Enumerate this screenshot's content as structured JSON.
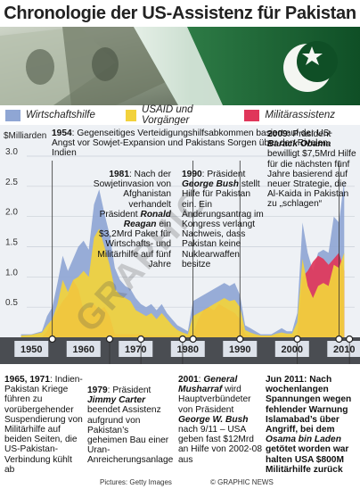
{
  "title": "Chronologie der US-Assistenz für Pakistan",
  "legend": {
    "items": [
      {
        "label": "Wirtschaftshilfe",
        "color": "#8fa6d4"
      },
      {
        "label": "USAID und Vorgänger",
        "color": "#f2d23c"
      },
      {
        "label": "Militärassistenz",
        "color": "#e0365a"
      }
    ]
  },
  "chart_data": {
    "type": "area",
    "ylabel": "$Milliarden",
    "ylim": [
      0,
      3.25
    ],
    "yticks": [
      "3.0",
      "2.5",
      "2.0",
      "1.5",
      "1.0",
      "0.5"
    ],
    "xticks": [
      "1950",
      "1960",
      "1970",
      "1980",
      "1990",
      "2000",
      "2010"
    ],
    "series": [
      {
        "name": "Wirtschaftshilfe",
        "color": "#8fa6d4",
        "x": [
          1948,
          1950,
          1952,
          1953,
          1954,
          1955,
          1956,
          1957,
          1958,
          1959,
          1960,
          1961,
          1962,
          1963,
          1964,
          1965,
          1966,
          1967,
          1968,
          1969,
          1970,
          1971,
          1972,
          1973,
          1974,
          1975,
          1976,
          1977,
          1978,
          1979,
          1980,
          1981,
          1982,
          1983,
          1984,
          1985,
          1986,
          1987,
          1988,
          1989,
          1990,
          1991,
          1992,
          1993,
          1994,
          1995,
          1996,
          1997,
          1998,
          1999,
          2000,
          2001,
          2002,
          2003,
          2004,
          2005,
          2006,
          2007,
          2008,
          2009,
          2010
        ],
        "values": [
          0.05,
          0.05,
          0.1,
          0.35,
          0.5,
          0.9,
          1.35,
          1.1,
          1.3,
          1.5,
          1.6,
          1.45,
          2.2,
          2.45,
          2.05,
          1.7,
          1.15,
          0.95,
          0.85,
          0.8,
          0.65,
          0.55,
          0.5,
          0.55,
          0.45,
          0.55,
          0.4,
          0.3,
          0.2,
          0.15,
          0.1,
          0.6,
          0.65,
          0.7,
          0.75,
          0.8,
          0.85,
          0.9,
          0.85,
          0.9,
          0.7,
          0.2,
          0.15,
          0.1,
          0.05,
          0.05,
          0.05,
          0.1,
          0.15,
          0.1,
          0.1,
          0.4,
          1.9,
          1.4,
          1.1,
          1.4,
          1.45,
          1.4,
          2.0,
          1.9,
          2.6
        ]
      },
      {
        "name": "USAID und Vorgänger",
        "color": "#f2d23c",
        "x": [
          1948,
          1950,
          1952,
          1953,
          1954,
          1955,
          1956,
          1957,
          1958,
          1959,
          1960,
          1961,
          1962,
          1963,
          1964,
          1965,
          1966,
          1967,
          1968,
          1969,
          1970,
          1971,
          1972,
          1973,
          1974,
          1975,
          1976,
          1977,
          1978,
          1979,
          1980,
          1981,
          1982,
          1983,
          1984,
          1985,
          1986,
          1987,
          1988,
          1989,
          1990,
          1991,
          1992,
          1993,
          1994,
          1995,
          1996,
          1997,
          1998,
          1999,
          2000,
          2001,
          2002,
          2003,
          2004,
          2005,
          2006,
          2007,
          2008,
          2009,
          2010
        ],
        "values": [
          0.03,
          0.04,
          0.08,
          0.2,
          0.3,
          0.55,
          0.95,
          0.75,
          0.95,
          1.0,
          1.1,
          1.0,
          1.65,
          1.8,
          1.5,
          1.2,
          0.8,
          0.7,
          0.65,
          0.6,
          0.45,
          0.4,
          0.35,
          0.4,
          0.3,
          0.4,
          0.3,
          0.2,
          0.12,
          0.08,
          0.05,
          0.35,
          0.4,
          0.45,
          0.5,
          0.55,
          0.6,
          0.65,
          0.6,
          0.62,
          0.5,
          0.12,
          0.08,
          0.05,
          0.03,
          0.03,
          0.03,
          0.06,
          0.08,
          0.06,
          0.06,
          0.25,
          1.3,
          0.85,
          0.65,
          0.85,
          0.9,
          0.85,
          1.2,
          1.15,
          1.4
        ]
      },
      {
        "name": "Militärassistenz",
        "color": "#e0365a",
        "x": [
          1948,
          1950,
          1952,
          1953,
          1954,
          1955,
          1956,
          1957,
          1958,
          1959,
          1960,
          1961,
          1962,
          1963,
          1964,
          1965,
          1966,
          1967,
          1968,
          1969,
          1970,
          1971,
          1972,
          1973,
          1974,
          1975,
          1976,
          1977,
          1978,
          1979,
          1980,
          1981,
          1982,
          1983,
          1984,
          1985,
          1986,
          1987,
          1988,
          1989,
          1990,
          1991,
          1992,
          1993,
          1994,
          1995,
          1996,
          1997,
          1998,
          1999,
          2000,
          2001,
          2002,
          2003,
          2004,
          2005,
          2006,
          2007,
          2008,
          2009,
          2010
        ],
        "values": [
          0.0,
          0.0,
          0.0,
          0.1,
          0.3,
          0.45,
          0.6,
          0.7,
          0.95,
          0.8,
          0.45,
          0.5,
          0.55,
          0.45,
          0.5,
          0.35,
          0.05,
          0.05,
          0.05,
          0.05,
          0.05,
          0.05,
          0.02,
          0.02,
          0.02,
          0.02,
          0.02,
          0.02,
          0.02,
          0.02,
          0.02,
          0.05,
          0.3,
          0.45,
          0.5,
          0.45,
          0.55,
          0.5,
          0.45,
          0.4,
          0.3,
          0.05,
          0.02,
          0.02,
          0.02,
          0.02,
          0.02,
          0.02,
          0.02,
          0.02,
          0.02,
          0.05,
          1.0,
          1.1,
          1.25,
          1.35,
          1.3,
          1.2,
          1.3,
          1.4,
          1.1
        ]
      }
    ]
  },
  "annotations": {
    "a1954": {
      "year": "1954",
      "text": ": Gegenseitiges Verteidigungshilfsabkommen basiert auf der US-Angst vor Sowjet-Expansion und Pakistans Sorgen über den Rivalen Indien"
    },
    "a1981": {
      "year": "1981",
      "pre": ": Nach der Sowjetinvasion von Afghanistan verhandelt Präsident",
      "name": "Ronald Reagan",
      "post": "ein $3,2Mrd Paket für Wirtschafts- und Militärhilfe auf fünf Jahre"
    },
    "a1990": {
      "year": "1990",
      "pre": ": Präsident",
      "name": "George Bush",
      "post": "stellt Hilfe für Pakistan ein. Ein Änderungsantrag im Kongress verlangt Nachweis, dass Pakistan keine Nuklearwaffen besitze"
    },
    "a2009": {
      "year": "2009",
      "pre": ": Präsident",
      "name": "Barack Obama",
      "post": "bewilligt $7,5Mrd Hilfe für die nächsten fünf Jahre basierend auf neuer Strategie, die Al-Kaida in Pakistan zu „schlagen“"
    },
    "a1965": {
      "year": "1965, 1971",
      "post": ": Indien-Pakistan Kriege führen zu vorübergehender Suspendierung von Militärhilfe auf beiden Seiten, die US-Pakistan-Verbindung kühlt ab"
    },
    "a1979": {
      "year": "1979",
      "pre": ": Präsident",
      "name": "Jimmy Carter",
      "post": "beendet Assistenz aufgrund von Pakistan’s geheimen Bau einer Uran-Anreicherungsanlage"
    },
    "a2001": {
      "year": "2001",
      "pre": ":",
      "name": "General Musharraf",
      "mid": "wird Hauptverbündeter von Präsident",
      "name2": "George W. Bush",
      "post": "nach 9/11 – USA geben fast $12Mrd an Hilfe von 2002-08 aus"
    },
    "a2011": {
      "text1": "Jun 2011: Nach wochenlangen Spannungen wegen fehlender Warnung Islamabad’s über Angriff, bei dem",
      "name": "Osama bin Laden",
      "text2": "getötet worden war halten USA $800M Militärhilfe zurück"
    }
  },
  "credits": {
    "pictures": "Pictures: Getty Images",
    "copyright": "© GRAPHIC NEWS",
    "watermark": "GRAPHIC"
  }
}
